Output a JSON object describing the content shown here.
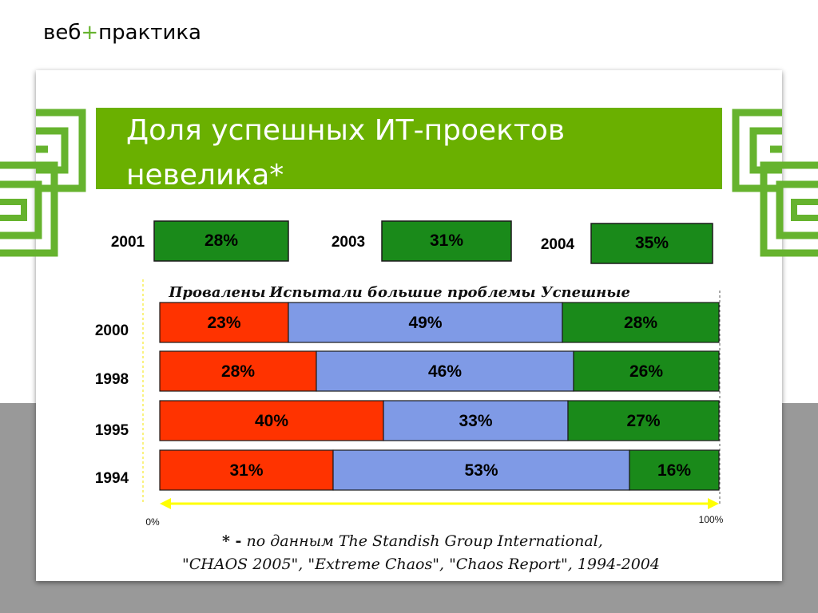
{
  "header": {
    "logo_left": "веб",
    "logo_plus": "+",
    "logo_right": "практика"
  },
  "slide": {
    "title": "Доля успешных ИТ-проектов невелика*"
  },
  "footnote": {
    "mark": "* -",
    "line1": "по данным The Standish Group International,",
    "line2": "\"CHAOS 2005\", \"Extreme Chaos\", \"Chaos Report\", 1994-2004"
  },
  "colors": {
    "failed": "#ff3300",
    "challenged": "#7f9ae6",
    "successful": "#1a8a1a",
    "title_bar": "#6ab000",
    "accent": "#66b32e",
    "arrow": "#ffff00"
  },
  "chart_data": [
    {
      "type": "bar",
      "orientation": "horizontal",
      "stacked": true,
      "normalized": true,
      "categories": [
        "2000",
        "1998",
        "1995",
        "1994"
      ],
      "series": [
        {
          "name": "Провалены",
          "values": [
            23,
            28,
            40,
            31
          ],
          "labels": [
            "23%",
            "28%",
            "40%",
            "31%"
          ]
        },
        {
          "name": "Испытали большие проблемы",
          "values": [
            49,
            46,
            33,
            53
          ],
          "labels": [
            "49%",
            "46%",
            "33%",
            "53%"
          ]
        },
        {
          "name": "Успешные",
          "values": [
            28,
            26,
            27,
            16
          ],
          "labels": [
            "28%",
            "26%",
            "27%",
            "16%"
          ]
        }
      ],
      "xlim": [
        0,
        100
      ],
      "axis_labels": {
        "min": "0%",
        "max": "100%"
      },
      "legend_position": "top"
    },
    {
      "type": "bar",
      "categories": [
        "2001",
        "2003",
        "2004"
      ],
      "values": [
        28,
        31,
        35
      ],
      "labels": [
        "28%",
        "31%",
        "35%"
      ]
    }
  ]
}
